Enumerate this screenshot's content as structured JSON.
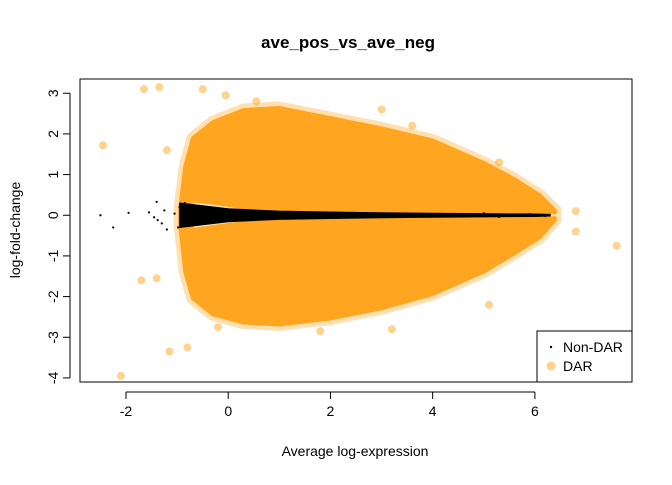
{
  "chart_data": {
    "type": "scatter",
    "title": "ave_pos_vs_ave_neg",
    "xlabel": "Average log-expression",
    "ylabel": "log-fold-change",
    "xlim": [
      -2.9,
      7.9
    ],
    "ylim": [
      -4.1,
      3.35
    ],
    "x_ticks": [
      -2,
      0,
      2,
      4,
      6
    ],
    "y_ticks": [
      -4,
      -3,
      -2,
      -1,
      0,
      1,
      2,
      3
    ],
    "grid": false,
    "legend_position": "bottom-right",
    "series": [
      {
        "name": "Non-DAR",
        "color": "#000000",
        "marker": "small dot",
        "points": [
          [
            -2.5,
            0.0
          ],
          [
            -2.25,
            -0.3
          ],
          [
            -1.95,
            0.06
          ],
          [
            -1.55,
            0.07
          ],
          [
            -1.4,
            0.33
          ],
          [
            -1.45,
            -0.05
          ],
          [
            -1.38,
            -0.12
          ],
          [
            -1.3,
            -0.2
          ],
          [
            -1.2,
            -0.35
          ],
          [
            -1.25,
            0.12
          ],
          [
            -1.05,
            0.04
          ],
          [
            -0.98,
            -0.3
          ],
          [
            -0.95,
            0.2
          ],
          [
            -0.9,
            -0.1
          ],
          [
            -0.85,
            0.3
          ],
          [
            -0.8,
            -0.22
          ],
          [
            -0.75,
            0.15
          ],
          [
            5.0,
            0.05
          ],
          [
            5.3,
            -0.04
          ],
          [
            5.6,
            0.02
          ],
          [
            5.9,
            0.03
          ],
          [
            6.2,
            -0.02
          ]
        ]
      },
      {
        "name": "DAR",
        "color": "#FFA520",
        "marker": "filled circle",
        "points": [
          [
            -2.45,
            1.72
          ],
          [
            -1.65,
            3.1
          ],
          [
            -1.35,
            3.15
          ],
          [
            -0.5,
            3.1
          ],
          [
            -0.05,
            2.95
          ],
          [
            0.55,
            2.8
          ],
          [
            3.0,
            2.6
          ],
          [
            3.6,
            2.2
          ],
          [
            5.3,
            1.3
          ],
          [
            5.8,
            0.4
          ],
          [
            6.8,
            0.1
          ],
          [
            7.6,
            -0.75
          ],
          [
            6.8,
            -0.4
          ],
          [
            5.1,
            -2.2
          ],
          [
            3.2,
            -2.8
          ],
          [
            1.8,
            -2.85
          ],
          [
            -0.2,
            -2.75
          ],
          [
            -0.8,
            -3.25
          ],
          [
            -1.15,
            -3.35
          ],
          [
            -2.1,
            -3.95
          ],
          [
            -1.7,
            -1.6
          ],
          [
            -1.4,
            -1.55
          ],
          [
            -1.2,
            1.6
          ]
        ]
      }
    ],
    "bulk_regions": {
      "DAR": {
        "upper_envelope": [
          [
            -0.95,
            0.18
          ],
          [
            -0.85,
            1.2
          ],
          [
            -0.7,
            1.9
          ],
          [
            -0.3,
            2.3
          ],
          [
            0.3,
            2.6
          ],
          [
            1.0,
            2.65
          ],
          [
            2.0,
            2.4
          ],
          [
            3.0,
            2.15
          ],
          [
            4.0,
            1.85
          ],
          [
            5.0,
            1.3
          ],
          [
            5.6,
            0.9
          ],
          [
            6.1,
            0.5
          ],
          [
            6.4,
            0.12
          ]
        ],
        "inner_upper": [
          [
            6.4,
            0.06
          ],
          [
            5.5,
            0.08
          ],
          [
            4.5,
            0.09
          ],
          [
            3.0,
            0.1
          ],
          [
            2.0,
            0.12
          ],
          [
            1.0,
            0.14
          ],
          [
            0.3,
            0.18
          ],
          [
            -0.3,
            0.3
          ],
          [
            -0.7,
            0.35
          ]
        ],
        "inner_lower": [
          [
            -0.7,
            -0.35
          ],
          [
            -0.3,
            -0.28
          ],
          [
            0.3,
            -0.18
          ],
          [
            1.0,
            -0.14
          ],
          [
            2.0,
            -0.12
          ],
          [
            3.0,
            -0.1
          ],
          [
            4.5,
            -0.09
          ],
          [
            5.5,
            -0.08
          ],
          [
            6.4,
            -0.06
          ]
        ],
        "lower_envelope": [
          [
            6.4,
            -0.12
          ],
          [
            6.1,
            -0.55
          ],
          [
            5.6,
            -0.95
          ],
          [
            5.0,
            -1.4
          ],
          [
            4.0,
            -1.95
          ],
          [
            3.0,
            -2.3
          ],
          [
            2.0,
            -2.55
          ],
          [
            1.0,
            -2.7
          ],
          [
            0.3,
            -2.65
          ],
          [
            -0.3,
            -2.45
          ],
          [
            -0.7,
            -2.05
          ],
          [
            -0.85,
            -1.4
          ],
          [
            -0.95,
            -0.25
          ]
        ]
      },
      "Non-DAR": {
        "band": [
          [
            -0.95,
            0.3
          ],
          [
            -0.6,
            0.25
          ],
          [
            0.0,
            0.16
          ],
          [
            1.0,
            0.1
          ],
          [
            2.0,
            0.08
          ],
          [
            3.0,
            0.06
          ],
          [
            4.0,
            0.05
          ],
          [
            5.0,
            0.04
          ],
          [
            6.0,
            0.03
          ],
          [
            6.3,
            0.02
          ],
          [
            6.3,
            -0.02
          ],
          [
            6.0,
            -0.03
          ],
          [
            5.0,
            -0.04
          ],
          [
            4.0,
            -0.05
          ],
          [
            3.0,
            -0.06
          ],
          [
            2.0,
            -0.08
          ],
          [
            1.0,
            -0.1
          ],
          [
            0.0,
            -0.16
          ],
          [
            -0.6,
            -0.25
          ],
          [
            -0.95,
            -0.3
          ]
        ]
      }
    }
  }
}
